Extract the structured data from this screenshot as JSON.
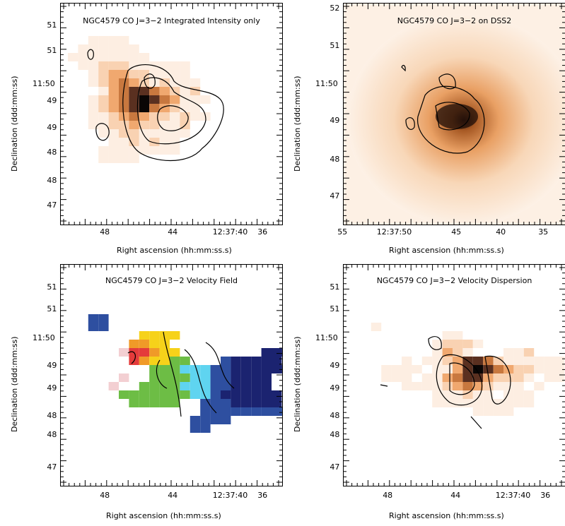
{
  "panels": [
    {
      "id": "intensity",
      "title": "NGC4579 CO J=3−2 Integrated Intensity only",
      "xlabel": "Right ascension (hh:mm:ss.s)",
      "ylabel": "Declination (ddd:mm:ss)",
      "xticks": [
        "48",
        "44",
        "12:37:40",
        "36"
      ],
      "yticks": [
        "51",
        "51",
        "11:50",
        "49",
        "49",
        "48",
        "48",
        "47"
      ]
    },
    {
      "id": "dss2",
      "title": "NGC4579 CO J=3−2 on DSS2",
      "xlabel": "Right ascension (hh:mm:ss.s)",
      "ylabel": "Declination (ddd:mm:ss)",
      "xticks": [
        "55",
        "12:37:50",
        "45",
        "40",
        "35"
      ],
      "yticks": [
        "52",
        "51",
        "11:50",
        "49",
        "48",
        "47"
      ]
    },
    {
      "id": "velocity",
      "title": "NGC4579 CO J=3−2 Velocity Field",
      "xlabel": "Right ascension (hh:mm:ss.s)",
      "ylabel": "Declination (ddd:mm:ss)",
      "xticks": [
        "48",
        "44",
        "12:37:40",
        "36"
      ],
      "yticks": [
        "51",
        "51",
        "11:50",
        "49",
        "49",
        "48",
        "48",
        "47"
      ]
    },
    {
      "id": "dispersion",
      "title": "NGC4579 CO J=3−2 Velocity Dispersion",
      "xlabel": "Right ascension (hh:mm:ss.s)",
      "ylabel": "Declination (ddd:mm:ss)",
      "xticks": [
        "48",
        "44",
        "12:37:40",
        "36"
      ],
      "yticks": [
        "51",
        "51",
        "11:50",
        "49",
        "49",
        "48",
        "48",
        "47"
      ]
    }
  ],
  "colors": {
    "intensity_scale": [
      "#fdeee2",
      "#f9d2b2",
      "#f0a86f",
      "#c8783f",
      "#5a3020",
      "#0a0605"
    ],
    "velocity_scale": [
      "#f3cfd2",
      "#e43b3b",
      "#f09a28",
      "#f6d21a",
      "#6dbd45",
      "#5fd4f0",
      "#2e4fa0",
      "#1b2370"
    ],
    "contour": "#000000"
  }
}
